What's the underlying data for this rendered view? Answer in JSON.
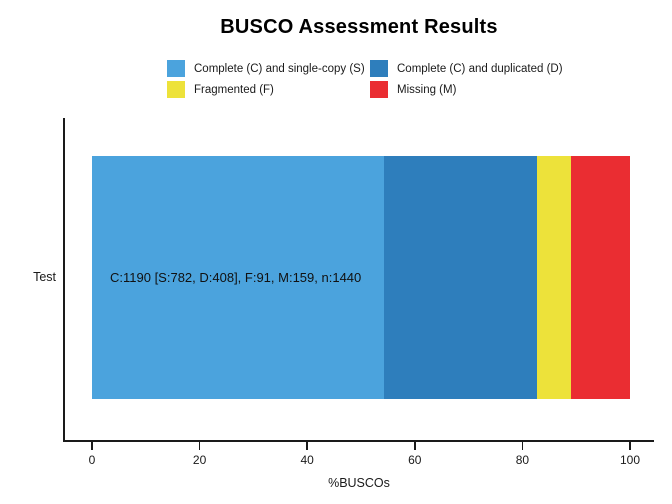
{
  "title": "BUSCO Assessment Results",
  "category_label": "Test",
  "bar_annotation": "C:1190 [S:782, D:408], F:91, M:159, n:1440",
  "colors": {
    "single_copy": "#4BA3DD",
    "duplicated": "#2E7EBC",
    "fragmented": "#EDE23A",
    "missing": "#EA2D32",
    "axis": "#1a1a1a"
  },
  "chart_data": {
    "type": "bar",
    "orientation": "horizontal",
    "stacked": true,
    "title": "BUSCO Assessment Results",
    "categories": [
      "Test"
    ],
    "series": [
      {
        "name": "Complete (C) and single-copy (S)",
        "values": [
          782
        ],
        "percent": 54.31,
        "color": "#4BA3DD"
      },
      {
        "name": "Complete (C) and duplicated (D)",
        "values": [
          408
        ],
        "percent": 28.33,
        "color": "#2E7EBC"
      },
      {
        "name": "Fragmented (F)",
        "values": [
          91
        ],
        "percent": 6.32,
        "color": "#EDE23A"
      },
      {
        "name": "Missing (M)",
        "values": [
          159
        ],
        "percent": 11.04,
        "color": "#EA2D32"
      }
    ],
    "total_buscos": 1440,
    "complete_total": 1190,
    "bar_label": "C:1190 [S:782, D:408], F:91, M:159, n:1440",
    "xlabel": "%BUSCOs",
    "ylabel": "",
    "xlim": [
      0,
      100
    ],
    "x_ticks": [
      0,
      20,
      40,
      60,
      80,
      100
    ],
    "grid": false,
    "legend_position": "top"
  }
}
